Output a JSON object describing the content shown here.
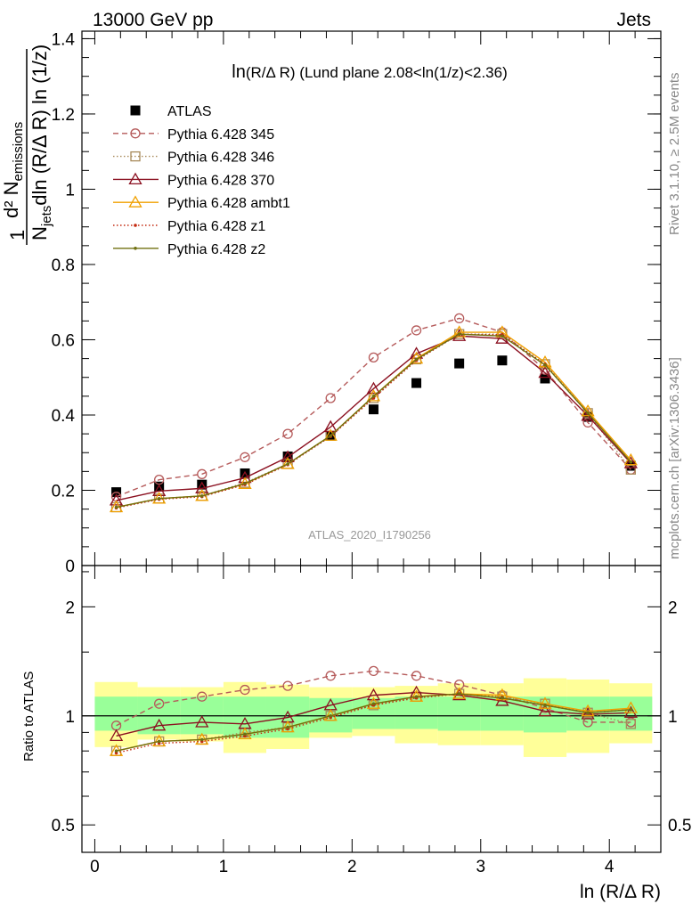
{
  "header": {
    "energy": "13000 GeV pp",
    "process": "Jets",
    "rivet": "Rivet 3.1.10, ≥ 2.5M events",
    "mcplots": "mcplots.cern.ch [arXiv:1306.3436]",
    "analysis": "ATLAS_2020_I1790256"
  },
  "chart_data": [
    {
      "type": "line",
      "panel": "main",
      "title": "ln(R/Δ R) (Lund plane 2.08<ln(1/z)<2.36)",
      "title_parts": {
        "a": "ln",
        "b": "(R/Δ R)",
        "c": " (Lund plane 2.08<ln(1/z)<2.36)"
      },
      "ylabel": {
        "numerator": "d² N",
        "numerator_sub": "emissions",
        "denominator_a": "N",
        "denominator_sub": "jets",
        "denominator_b": "dln (R/Δ R) ln (1/z)",
        "prefix": "1"
      },
      "xlim": [
        -0.1,
        4.4
      ],
      "ylim": [
        0,
        1.42
      ],
      "yticks": [
        0,
        0.2,
        0.4,
        0.6,
        0.8,
        1,
        1.2,
        1.4
      ],
      "ytick_labels": [
        "0",
        "0.2",
        "0.4",
        "0.6",
        "0.8",
        "1",
        "1.2",
        "1.4"
      ],
      "legend_position": "top-left",
      "x": [
        0.167,
        0.5,
        0.833,
        1.167,
        1.5,
        1.833,
        2.167,
        2.5,
        2.833,
        3.167,
        3.5,
        3.833,
        4.167
      ],
      "series": [
        {
          "name": "ATLAS",
          "style": "data",
          "color": "#000000",
          "marker": "square",
          "values": [
            0.195,
            0.21,
            0.215,
            0.245,
            0.29,
            0.345,
            0.415,
            0.485,
            0.537,
            0.545,
            0.497,
            0.395,
            0.265
          ]
        },
        {
          "name": "Pythia 6.428 345",
          "style": "dashed",
          "color": "#b55a5a",
          "marker": "circle",
          "values": [
            0.183,
            0.228,
            0.243,
            0.288,
            0.35,
            0.445,
            0.553,
            0.625,
            0.657,
            0.62,
            0.52,
            0.38,
            0.255
          ]
        },
        {
          "name": "Pythia 6.428 346",
          "style": "dotted",
          "color": "#a88a5a",
          "marker": "square-open",
          "values": [
            0.155,
            0.178,
            0.185,
            0.22,
            0.27,
            0.345,
            0.445,
            0.548,
            0.615,
            0.615,
            0.535,
            0.405,
            0.255
          ]
        },
        {
          "name": "Pythia 6.428 370",
          "style": "solid",
          "color": "#8b1020",
          "marker": "triangle",
          "values": [
            0.173,
            0.198,
            0.205,
            0.233,
            0.288,
            0.368,
            0.47,
            0.563,
            0.61,
            0.603,
            0.512,
            0.398,
            0.272
          ]
        },
        {
          "name": "Pythia 6.428 ambt1",
          "style": "solid",
          "color": "#f0a000",
          "marker": "triangle",
          "values": [
            0.155,
            0.178,
            0.185,
            0.217,
            0.27,
            0.345,
            0.45,
            0.55,
            0.62,
            0.62,
            0.54,
            0.41,
            0.28
          ]
        },
        {
          "name": "Pythia 6.428 z1",
          "style": "dotted",
          "color": "#c42a10",
          "marker": "dot",
          "values": [
            0.153,
            0.176,
            0.183,
            0.215,
            0.268,
            0.343,
            0.445,
            0.545,
            0.615,
            0.613,
            0.535,
            0.405,
            0.275
          ]
        },
        {
          "name": "Pythia 6.428 z2",
          "style": "solid",
          "color": "#707010",
          "marker": "dot",
          "values": [
            0.155,
            0.178,
            0.185,
            0.218,
            0.27,
            0.345,
            0.45,
            0.548,
            0.615,
            0.61,
            0.533,
            0.405,
            0.275
          ]
        }
      ]
    },
    {
      "type": "line",
      "panel": "ratio",
      "ylabel": "Ratio to ATLAS",
      "xlabel": "ln (R/Δ R)",
      "xlim": [
        -0.1,
        4.4
      ],
      "ylim": [
        0.42,
        2.6
      ],
      "log_y": true,
      "xticks": [
        0,
        1,
        2,
        3,
        4
      ],
      "xtick_labels": [
        "0",
        "1",
        "2",
        "3",
        "4"
      ],
      "yticks": [
        0.5,
        1,
        2
      ],
      "ytick_labels": [
        "0.5",
        "1",
        "2"
      ],
      "x": [
        0.167,
        0.5,
        0.833,
        1.167,
        1.5,
        1.833,
        2.167,
        2.5,
        2.833,
        3.167,
        3.5,
        3.833,
        4.167
      ],
      "bins": [
        0,
        0.333,
        0.667,
        1,
        1.333,
        1.667,
        2,
        2.333,
        2.667,
        3,
        3.333,
        3.667,
        4,
        4.333
      ],
      "band_inner": {
        "color": "#99ff99",
        "low": [
          0.91,
          0.89,
          0.89,
          0.87,
          0.87,
          0.9,
          0.92,
          0.92,
          0.91,
          0.91,
          0.9,
          0.91,
          0.91
        ],
        "high": [
          1.13,
          1.13,
          1.13,
          1.13,
          1.13,
          1.12,
          1.12,
          1.13,
          1.13,
          1.13,
          1.13,
          1.13,
          1.13
        ]
      },
      "band_outer": {
        "color": "#ffff99",
        "low": [
          0.82,
          0.86,
          0.85,
          0.79,
          0.81,
          0.87,
          0.88,
          0.84,
          0.83,
          0.83,
          0.77,
          0.79,
          0.84
        ],
        "high": [
          1.24,
          1.2,
          1.2,
          1.24,
          1.22,
          1.2,
          1.2,
          1.21,
          1.23,
          1.23,
          1.27,
          1.26,
          1.23
        ]
      },
      "series": [
        {
          "name": "Pythia 6.428 345",
          "style": "dashed",
          "color": "#b55a5a",
          "marker": "circle",
          "values": [
            0.94,
            1.08,
            1.13,
            1.18,
            1.21,
            1.29,
            1.33,
            1.29,
            1.22,
            1.14,
            1.05,
            0.96,
            0.96
          ]
        },
        {
          "name": "Pythia 6.428 346",
          "style": "dotted",
          "color": "#a88a5a",
          "marker": "square-open",
          "values": [
            0.8,
            0.85,
            0.86,
            0.9,
            0.93,
            1.0,
            1.07,
            1.13,
            1.15,
            1.13,
            1.08,
            1.02,
            0.95
          ]
        },
        {
          "name": "Pythia 6.428 370",
          "style": "solid",
          "color": "#8b1020",
          "marker": "triangle",
          "values": [
            0.88,
            0.94,
            0.96,
            0.95,
            0.99,
            1.07,
            1.14,
            1.16,
            1.14,
            1.1,
            1.03,
            1.01,
            1.02
          ]
        },
        {
          "name": "Pythia 6.428 ambt1",
          "style": "solid",
          "color": "#f0a000",
          "marker": "triangle",
          "values": [
            0.8,
            0.85,
            0.86,
            0.89,
            0.93,
            1.0,
            1.08,
            1.13,
            1.15,
            1.14,
            1.08,
            1.03,
            1.05
          ]
        },
        {
          "name": "Pythia 6.428 z1",
          "style": "dotted",
          "color": "#c42a10",
          "marker": "dot",
          "values": [
            0.79,
            0.84,
            0.85,
            0.88,
            0.92,
            0.99,
            1.07,
            1.12,
            1.15,
            1.12,
            1.07,
            1.02,
            1.04
          ]
        },
        {
          "name": "Pythia 6.428 z2",
          "style": "solid",
          "color": "#707010",
          "marker": "dot",
          "values": [
            0.8,
            0.85,
            0.86,
            0.89,
            0.93,
            1.0,
            1.08,
            1.13,
            1.15,
            1.12,
            1.07,
            1.02,
            1.04
          ]
        }
      ]
    }
  ]
}
